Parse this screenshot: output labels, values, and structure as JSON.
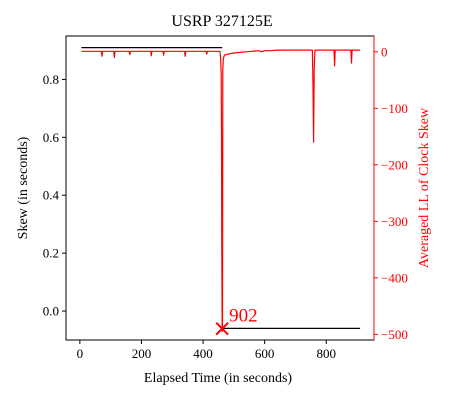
{
  "chart_data": {
    "type": "line",
    "title": "USRP 327125E",
    "xlabel": "Elapsed Time (in seconds)",
    "ylabel_left": "Skew (in seconds)",
    "ylabel_right": "Averaged LL of Clock Skew",
    "xlim": [
      -45,
      955
    ],
    "ylim_left": [
      -0.1,
      0.95
    ],
    "ylim_right": [
      -510,
      28
    ],
    "x_ticks": [
      0,
      200,
      400,
      600,
      800
    ],
    "y_ticks_left": [
      0.0,
      0.2,
      0.4,
      0.6,
      0.8
    ],
    "y_ticks_right": [
      0,
      -100,
      -200,
      -300,
      -400,
      -500
    ],
    "grid": false,
    "colors": {
      "skew": "#000000",
      "ll": "#ff0000",
      "marker": "#ff0000"
    },
    "series": [
      {
        "axis": "left",
        "color": "#000000",
        "segments": [
          {
            "x": [
              5,
              462
            ],
            "y": [
              0.91,
              0.91
            ]
          },
          {
            "x": [
              462,
              910
            ],
            "y": [
              -0.06,
              -0.06
            ]
          }
        ]
      },
      {
        "axis": "right",
        "color": "#ff0000",
        "x": [
          5,
          60,
          70,
          72,
          74,
          100,
          110,
          112,
          114,
          150,
          160,
          162,
          164,
          200,
          220,
          230,
          232,
          234,
          260,
          270,
          272,
          274,
          300,
          330,
          340,
          342,
          344,
          380,
          400,
          410,
          412,
          414,
          430,
          452,
          455,
          457,
          459,
          460,
          461,
          462,
          463,
          464,
          466,
          468,
          470,
          480,
          500,
          520,
          540,
          560,
          580,
          590,
          600,
          620,
          640,
          660,
          680,
          700,
          720,
          740,
          755,
          757,
          759,
          761,
          763,
          780,
          800,
          820,
          825,
          827,
          829,
          850,
          870,
          880,
          882,
          884,
          890,
          910
        ],
        "y": [
          1,
          1,
          1,
          -8,
          1,
          1,
          1,
          -10,
          1,
          1,
          1,
          -5,
          1,
          1,
          1,
          1,
          -7,
          1,
          1,
          1,
          -6,
          1,
          1,
          1,
          1,
          -8,
          1,
          1,
          1,
          1,
          -4,
          1,
          1,
          1,
          1,
          -10,
          -40,
          -150,
          -350,
          -495,
          -480,
          -30,
          -12,
          -8,
          -6,
          -4,
          -2,
          -1,
          0,
          1,
          2,
          0,
          2,
          2,
          3,
          3,
          3,
          3,
          3,
          3,
          3,
          -60,
          -160,
          -30,
          3,
          3,
          3,
          3,
          3,
          -25,
          3,
          3,
          3,
          3,
          -20,
          3,
          3,
          3
        ]
      }
    ],
    "annotations": [
      {
        "text": "902",
        "x": 462,
        "y_right": -490,
        "marker": "x"
      }
    ]
  }
}
